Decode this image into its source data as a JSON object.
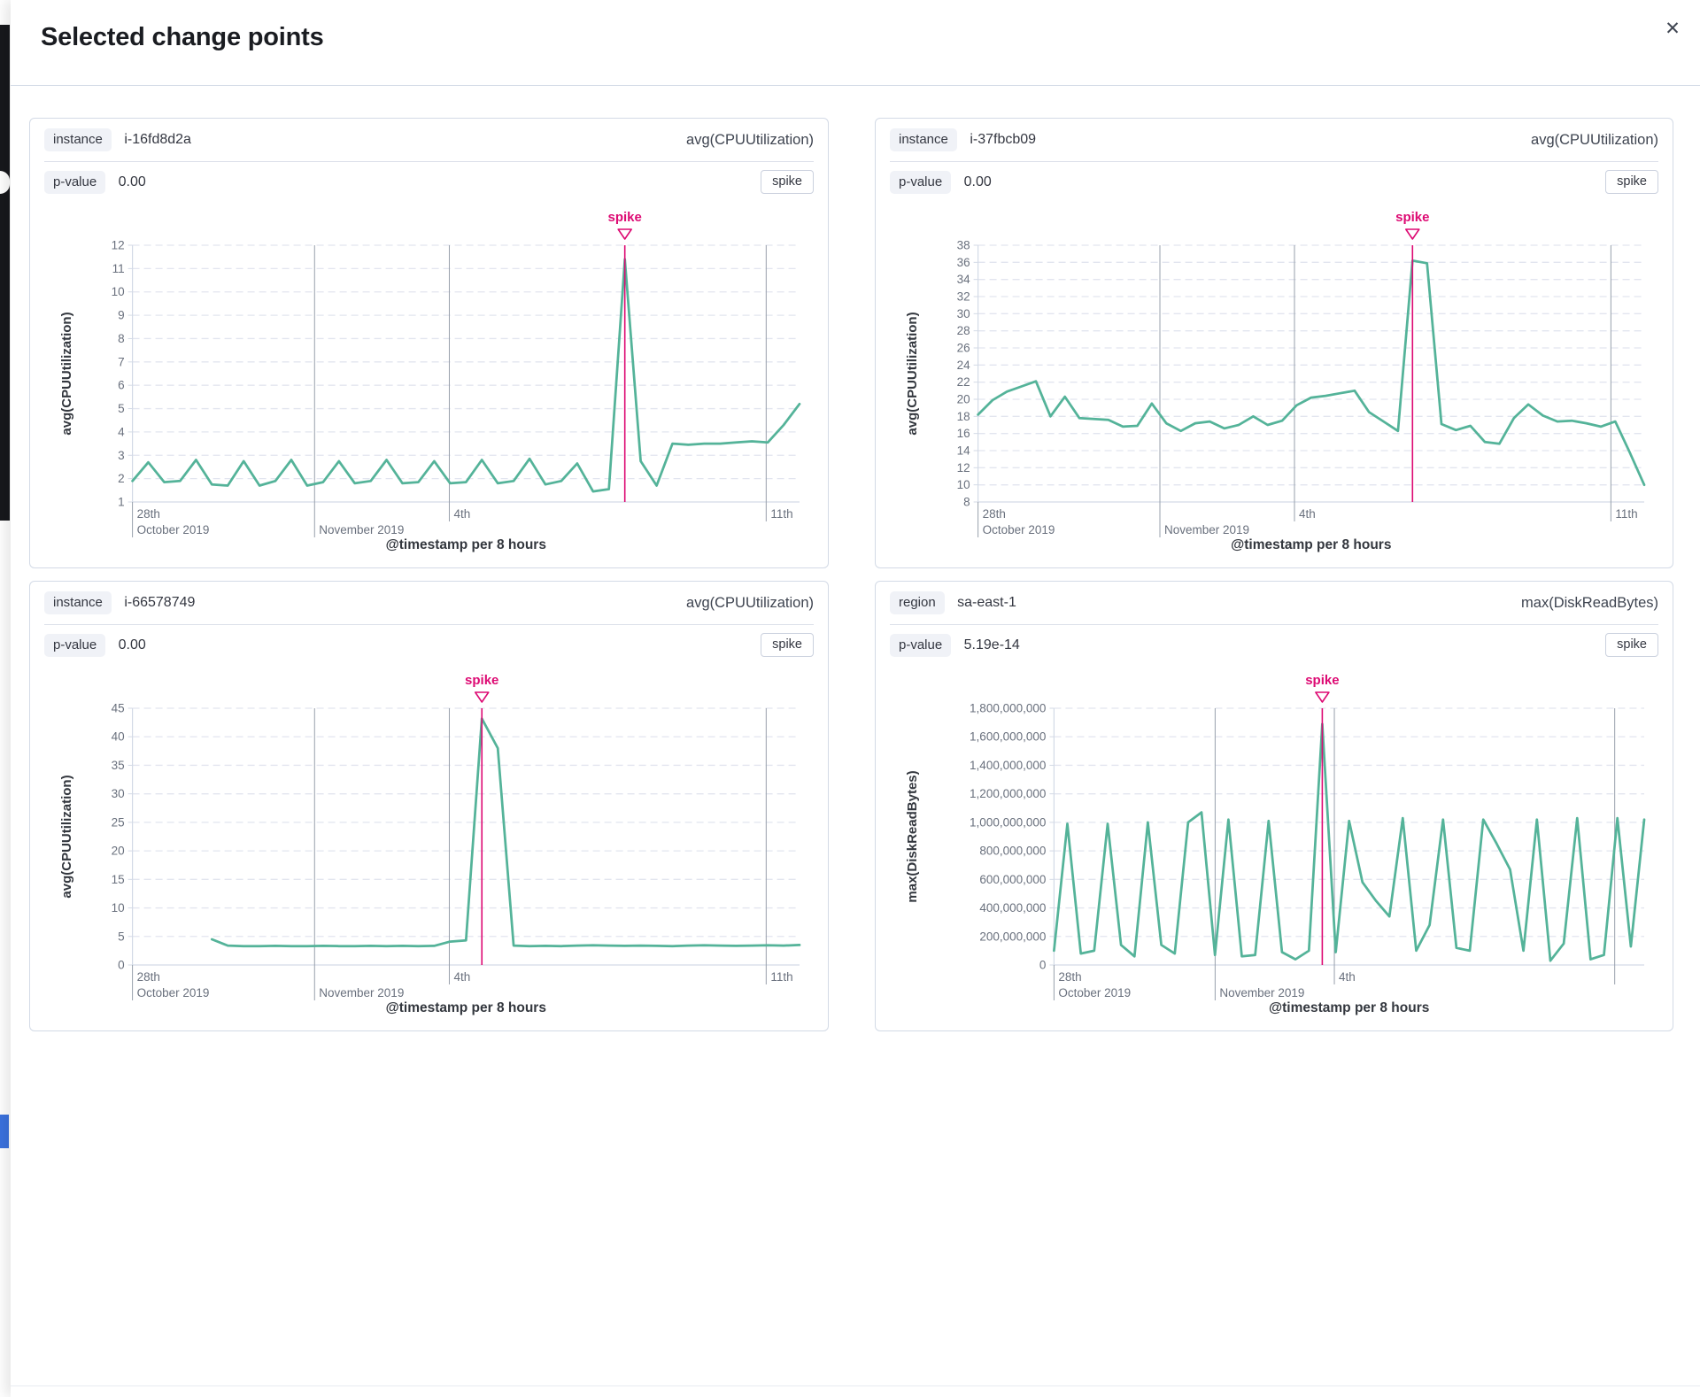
{
  "modal": {
    "title": "Selected change points",
    "close_glyph": "✕"
  },
  "colors": {
    "line": "#54B399",
    "annotation": "#DD0A73",
    "grid_dashed": "#E2E5EF",
    "grid_date": "#98A0AC",
    "axis": "#D3DAE6",
    "tick_text": "#69707D",
    "axis_title_text": "#33373E"
  },
  "panels": [
    {
      "field_badge": "instance",
      "field_value": "i-16fd8d2a",
      "agg_label": "avg(CPUUtilization)",
      "pvalue_badge": "p-value",
      "pvalue": "0.00",
      "type_badge": "spike"
    },
    {
      "field_badge": "instance",
      "field_value": "i-37fbcb09",
      "agg_label": "avg(CPUUtilization)",
      "pvalue_badge": "p-value",
      "pvalue": "0.00",
      "type_badge": "spike"
    },
    {
      "field_badge": "instance",
      "field_value": "i-66578749",
      "agg_label": "avg(CPUUtilization)",
      "pvalue_badge": "p-value",
      "pvalue": "0.00",
      "type_badge": "spike"
    },
    {
      "field_badge": "region",
      "field_value": "sa-east-1",
      "agg_label": "max(DiskReadBytes)",
      "pvalue_badge": "p-value",
      "pvalue": "5.19e-14",
      "type_badge": "spike"
    }
  ],
  "chart_data": [
    {
      "type": "line",
      "ylabel": "avg(CPUUtilization)",
      "xlabel": "@timestamp per 8 hours",
      "ylim": [
        1,
        12
      ],
      "yticks": [
        "12",
        "11",
        "10",
        "9",
        "8",
        "7",
        "6",
        "5",
        "4",
        "3",
        "2",
        "1"
      ],
      "xticks": [
        {
          "f": 0.0,
          "row1": "28th",
          "row2": "October 2019"
        },
        {
          "f": 0.273,
          "row1": "",
          "row2": "November 2019"
        },
        {
          "f": 0.475,
          "row1": "4th",
          "row2": ""
        },
        {
          "f": 0.95,
          "row1": "11th",
          "row2": ""
        }
      ],
      "values": [
        1.9,
        2.7,
        1.85,
        1.9,
        2.8,
        1.75,
        1.7,
        2.75,
        1.7,
        1.9,
        2.8,
        1.7,
        1.85,
        2.75,
        1.8,
        1.9,
        2.8,
        1.8,
        1.85,
        2.75,
        1.8,
        1.85,
        2.8,
        1.8,
        1.9,
        2.85,
        1.75,
        1.9,
        2.65,
        1.45,
        1.55,
        11.4,
        2.75,
        1.7,
        3.5,
        3.45,
        3.5,
        3.5,
        3.55,
        3.6,
        3.55,
        4.3,
        5.2
      ],
      "annotation": {
        "label": "spike",
        "index": 31
      }
    },
    {
      "type": "line",
      "ylabel": "avg(CPUUtilization)",
      "xlabel": "@timestamp per 8 hours",
      "ylim": [
        8,
        38
      ],
      "yticks": [
        "38",
        "36",
        "34",
        "32",
        "30",
        "28",
        "26",
        "24",
        "22",
        "20",
        "18",
        "16",
        "14",
        "12",
        "10",
        "8"
      ],
      "xticks": [
        {
          "f": 0.0,
          "row1": "28th",
          "row2": "October 2019"
        },
        {
          "f": 0.273,
          "row1": "",
          "row2": "November 2019"
        },
        {
          "f": 0.475,
          "row1": "4th",
          "row2": ""
        },
        {
          "f": 0.95,
          "row1": "11th",
          "row2": ""
        }
      ],
      "values": [
        18.2,
        19.9,
        20.9,
        21.5,
        22.1,
        18.0,
        20.3,
        17.8,
        17.7,
        17.6,
        16.8,
        16.9,
        19.5,
        17.2,
        16.3,
        17.2,
        17.4,
        16.6,
        17.0,
        18.0,
        17.0,
        17.5,
        19.3,
        20.2,
        20.4,
        20.7,
        21.0,
        18.5,
        17.4,
        16.3,
        36.2,
        35.9,
        17.1,
        16.4,
        16.9,
        15.0,
        14.8,
        17.8,
        19.4,
        18.1,
        17.4,
        17.5,
        17.2,
        16.8,
        17.4,
        13.8,
        10.0
      ],
      "annotation": {
        "label": "spike",
        "index": 30
      }
    },
    {
      "type": "line",
      "ylabel": "avg(CPUUtilization)",
      "xlabel": "@timestamp per 8 hours",
      "ylim": [
        0,
        45
      ],
      "yticks": [
        "45",
        "40",
        "35",
        "30",
        "25",
        "20",
        "15",
        "10",
        "5",
        "0"
      ],
      "xticks": [
        {
          "f": 0.0,
          "row1": "28th",
          "row2": "October 2019"
        },
        {
          "f": 0.273,
          "row1": "",
          "row2": "November 2019"
        },
        {
          "f": 0.475,
          "row1": "4th",
          "row2": ""
        },
        {
          "f": 0.95,
          "row1": "11th",
          "row2": ""
        }
      ],
      "values": [
        null,
        null,
        null,
        null,
        null,
        4.5,
        3.4,
        3.3,
        3.3,
        3.35,
        3.3,
        3.3,
        3.35,
        3.3,
        3.3,
        3.35,
        3.3,
        3.35,
        3.3,
        3.35,
        4.1,
        4.3,
        43.2,
        38.0,
        3.4,
        3.3,
        3.35,
        3.3,
        3.4,
        3.45,
        3.4,
        3.35,
        3.4,
        3.35,
        3.3,
        3.4,
        3.45,
        3.4,
        3.35,
        3.4,
        3.45,
        3.4,
        3.5
      ],
      "annotation": {
        "label": "spike",
        "index": 22
      }
    },
    {
      "type": "line",
      "ylabel": "max(DiskReadBytes)",
      "xlabel": "@timestamp per 8 hours",
      "ylim": [
        0,
        1800000000
      ],
      "yticks": [
        "1,800,000,000",
        "1,600,000,000",
        "1,400,000,000",
        "1,200,000,000",
        "1,000,000,000",
        "800,000,000",
        "600,000,000",
        "400,000,000",
        "200,000,000",
        "0"
      ],
      "xticks": [
        {
          "f": 0.0,
          "row1": "28th",
          "row2": "October 2019"
        },
        {
          "f": 0.273,
          "row1": "",
          "row2": "November 2019"
        },
        {
          "f": 0.475,
          "row1": "4th",
          "row2": ""
        },
        {
          "f": 0.95,
          "row1": "",
          "row2": ""
        }
      ],
      "values": [
        100000000,
        990000000,
        80000000,
        100000000,
        990000000,
        140000000,
        60000000,
        1000000000,
        140000000,
        80000000,
        1000000000,
        1070000000,
        70000000,
        1020000000,
        60000000,
        70000000,
        1010000000,
        90000000,
        40000000,
        100000000,
        1690000000,
        90000000,
        1010000000,
        580000000,
        450000000,
        340000000,
        1030000000,
        100000000,
        280000000,
        1020000000,
        120000000,
        100000000,
        1020000000,
        850000000,
        670000000,
        100000000,
        1020000000,
        30000000,
        150000000,
        1030000000,
        40000000,
        70000000,
        1030000000,
        130000000,
        1020000000
      ],
      "annotation": {
        "label": "spike",
        "index": 20
      }
    }
  ]
}
